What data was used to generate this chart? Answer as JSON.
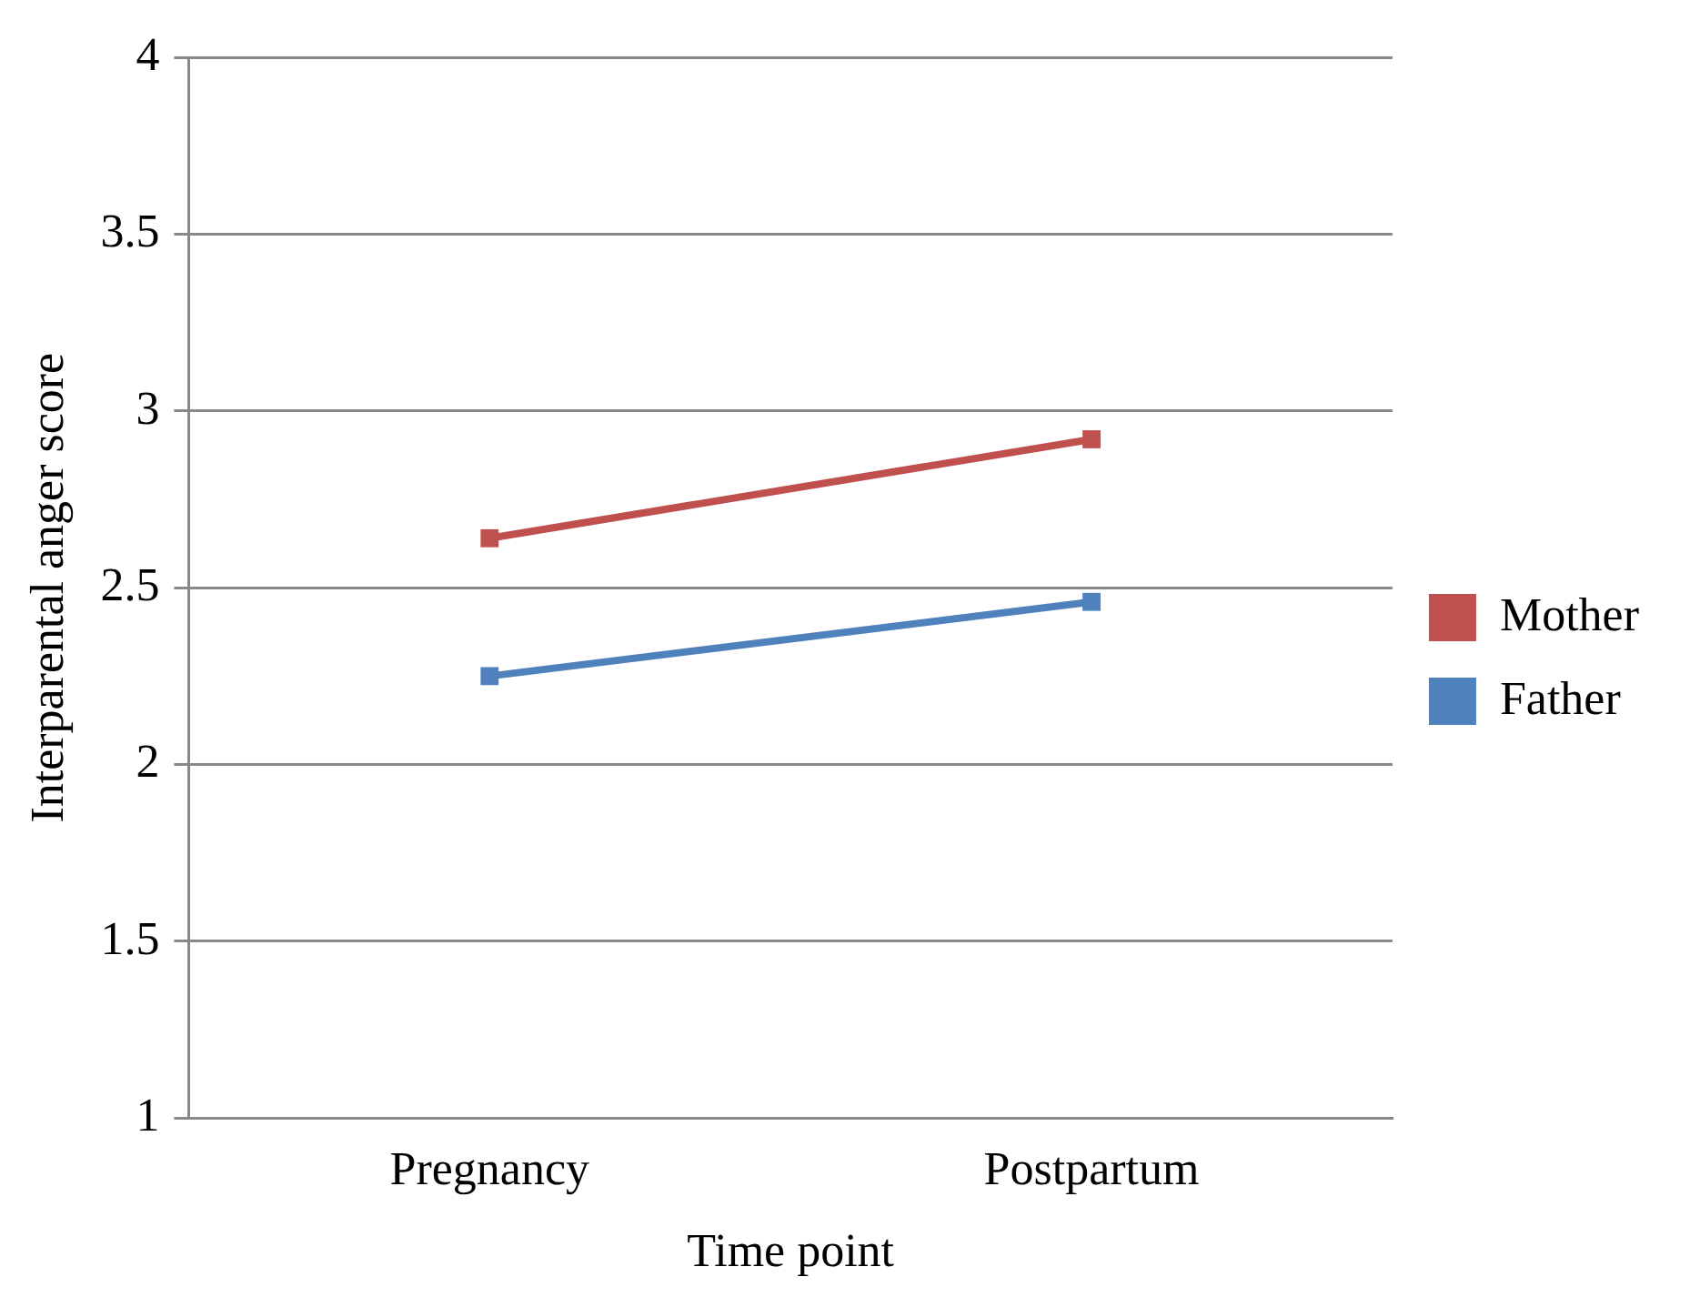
{
  "chart_data": {
    "type": "line",
    "xlabel": "Time point",
    "ylabel": "Interparental anger score",
    "categories": [
      "Pregnancy",
      "Postpartum"
    ],
    "series": [
      {
        "name": "Mother",
        "color": "#c0504d",
        "values": [
          2.64,
          2.92
        ]
      },
      {
        "name": "Father",
        "color": "#4f81bd",
        "values": [
          2.25,
          2.46
        ]
      }
    ],
    "ylim": [
      1,
      4
    ],
    "yticks": [
      1,
      1.5,
      2,
      2.5,
      3,
      3.5,
      4
    ],
    "grid": "y",
    "legend": "right",
    "marker": "square",
    "line_style": "solid"
  }
}
